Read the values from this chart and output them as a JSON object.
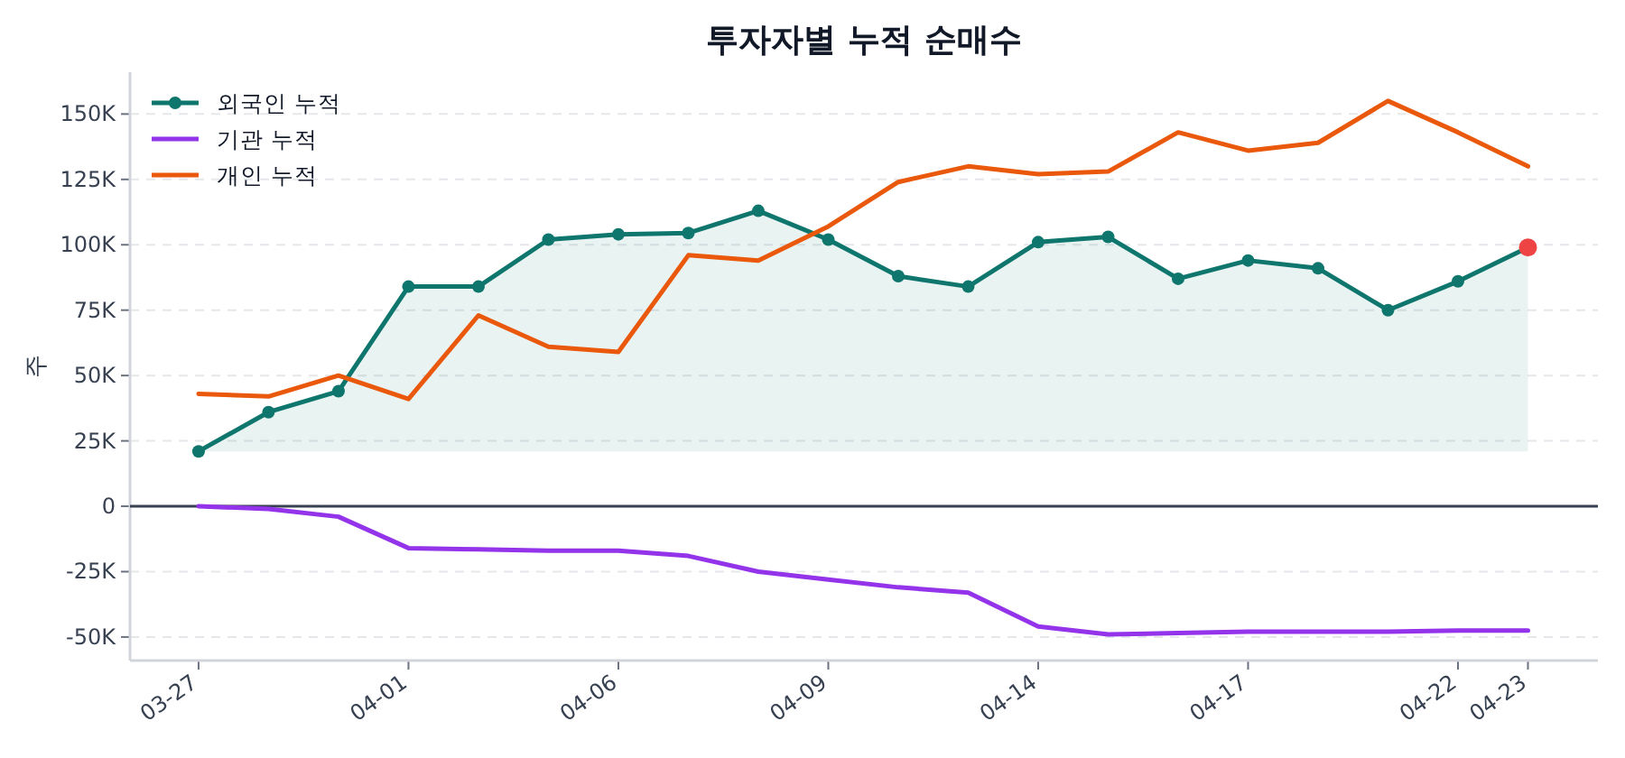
{
  "chart_data": {
    "type": "line",
    "title": "투자자별 누적 순매수",
    "ylabel": "주",
    "categories": [
      "03-27",
      null,
      null,
      "04-01",
      null,
      null,
      "04-06",
      null,
      null,
      "04-09",
      null,
      null,
      "04-14",
      null,
      null,
      "04-17",
      null,
      null,
      "04-22",
      "04-23"
    ],
    "series": [
      {
        "name": "외국인 누적",
        "type": "area",
        "marker": "circle",
        "color": "#0f766e",
        "colors": [
          "#0f766e",
          "#0f766e",
          "#0f766e",
          "#0f766e",
          "#0f766e",
          "#0f766e",
          "#0f766e",
          "#0f766e",
          "#0f766e",
          "#0f766e",
          "#0f766e",
          "#0f766e",
          "#0f766e",
          "#0f766e",
          "#0f766e",
          "#0f766e",
          "#0f766e",
          "#0f766e",
          "#0f766e",
          "#ef4444"
        ],
        "values": [
          21000,
          36000,
          44000,
          84000,
          84000,
          102000,
          104000,
          104500,
          113000,
          102000,
          88000,
          84000,
          101000,
          103000,
          87000,
          94000,
          91000,
          75000,
          86000,
          99000
        ]
      },
      {
        "name": "기관 누적",
        "color": "#9333ea",
        "values": [
          0,
          -1000,
          -4000,
          -16000,
          -16500,
          -17000,
          -17000,
          -19000,
          -25000,
          -28000,
          -31000,
          -33000,
          -46000,
          -49000,
          -48500,
          -48000,
          -48000,
          -48000,
          -47500,
          -47500
        ]
      },
      {
        "name": "개인 누적",
        "color": "#ea580c",
        "values": [
          43000,
          42000,
          50000,
          41000,
          73000,
          61000,
          59000,
          96000,
          94000,
          107000,
          124000,
          130000,
          127000,
          128000,
          143000,
          136000,
          139000,
          155000,
          143000,
          130000
        ]
      }
    ],
    "ylim": [
      -59000,
      166000
    ],
    "yticks": [
      {
        "value": -50000,
        "label": "-50K"
      },
      {
        "value": -25000,
        "label": "-25K"
      },
      0,
      {
        "value": 25000,
        "label": "25K"
      },
      {
        "value": 50000,
        "label": "50K"
      },
      {
        "value": 75000,
        "label": "75K"
      },
      {
        "value": 100000,
        "label": "100K"
      },
      {
        "value": 125000,
        "label": "125K"
      },
      {
        "value": 150000,
        "label": "150K"
      }
    ],
    "ref_lines": [
      {
        "axis": "y",
        "value": 0,
        "color": "#374151",
        "line_style": "solid"
      }
    ],
    "grid": "y",
    "legend": "top left",
    "line_style": "solid"
  }
}
